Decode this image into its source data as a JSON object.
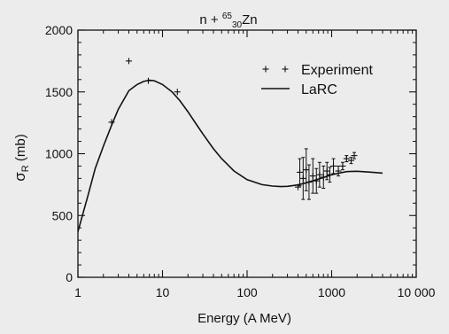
{
  "chart_data": {
    "type": "scatter",
    "title": {
      "prefix": "n + ",
      "mass_number": "65",
      "atomic_number": "30",
      "element": "Zn"
    },
    "xlabel": "Energy (A MeV)",
    "ylabel": {
      "symbol": "σ",
      "subscript": "R",
      "unit": " (mb)"
    },
    "x_scale": "log",
    "xlim": [
      1,
      10000
    ],
    "ylim": [
      0,
      2000
    ],
    "x_ticks": [
      {
        "value": 1,
        "label": "1"
      },
      {
        "value": 10,
        "label": "10"
      },
      {
        "value": 100,
        "label": "100"
      },
      {
        "value": 1000,
        "label": "1000"
      },
      {
        "value": 10000,
        "label": "10 000"
      }
    ],
    "y_ticks": [
      {
        "value": 0,
        "label": "0"
      },
      {
        "value": 500,
        "label": "500"
      },
      {
        "value": 1000,
        "label": "1000"
      },
      {
        "value": 1500,
        "label": "1500"
      },
      {
        "value": 2000,
        "label": "2000"
      }
    ],
    "legend_position": "top-right",
    "series": [
      {
        "name": "Experiment",
        "kind": "points",
        "marker": "plus",
        "points": [
          {
            "x": 2.5,
            "y": 1255
          },
          {
            "x": 4.0,
            "y": 1750
          },
          {
            "x": 6.8,
            "y": 1590
          },
          {
            "x": 15,
            "y": 1500
          },
          {
            "x": 400,
            "y": 730
          },
          {
            "x": 420,
            "y": 850,
            "yerr": 110
          },
          {
            "x": 460,
            "y": 800,
            "yerr": 170
          },
          {
            "x": 500,
            "y": 870,
            "yerr": 170
          },
          {
            "x": 540,
            "y": 770,
            "yerr": 140
          },
          {
            "x": 600,
            "y": 820,
            "yerr": 140
          },
          {
            "x": 660,
            "y": 780,
            "yerr": 100
          },
          {
            "x": 720,
            "y": 830,
            "yerr": 100
          },
          {
            "x": 800,
            "y": 810,
            "yerr": 90
          },
          {
            "x": 880,
            "y": 860,
            "yerr": 70
          },
          {
            "x": 950,
            "y": 830,
            "yerr": 60
          },
          {
            "x": 1050,
            "y": 900,
            "yerr": 60
          },
          {
            "x": 1200,
            "y": 860,
            "yerr": 40
          },
          {
            "x": 1350,
            "y": 900,
            "yerr": 30
          },
          {
            "x": 1500,
            "y": 960,
            "yerr": 25
          },
          {
            "x": 1700,
            "y": 945,
            "yerr": 25
          },
          {
            "x": 1850,
            "y": 985,
            "yerr": 25
          }
        ]
      },
      {
        "name": "LaRC",
        "kind": "line",
        "points": [
          {
            "x": 1.0,
            "y": 370
          },
          {
            "x": 1.3,
            "y": 650
          },
          {
            "x": 1.6,
            "y": 880
          },
          {
            "x": 2.0,
            "y": 1060
          },
          {
            "x": 2.5,
            "y": 1230
          },
          {
            "x": 3.0,
            "y": 1360
          },
          {
            "x": 4.0,
            "y": 1510
          },
          {
            "x": 5.0,
            "y": 1560
          },
          {
            "x": 6.0,
            "y": 1585
          },
          {
            "x": 7.0,
            "y": 1595
          },
          {
            "x": 8.0,
            "y": 1590
          },
          {
            "x": 10,
            "y": 1560
          },
          {
            "x": 13,
            "y": 1500
          },
          {
            "x": 16,
            "y": 1430
          },
          {
            "x": 20,
            "y": 1340
          },
          {
            "x": 25,
            "y": 1240
          },
          {
            "x": 30,
            "y": 1160
          },
          {
            "x": 40,
            "y": 1040
          },
          {
            "x": 50,
            "y": 960
          },
          {
            "x": 70,
            "y": 860
          },
          {
            "x": 100,
            "y": 790
          },
          {
            "x": 150,
            "y": 750
          },
          {
            "x": 200,
            "y": 738
          },
          {
            "x": 250,
            "y": 734
          },
          {
            "x": 300,
            "y": 736
          },
          {
            "x": 400,
            "y": 748
          },
          {
            "x": 500,
            "y": 765
          },
          {
            "x": 700,
            "y": 795
          },
          {
            "x": 1000,
            "y": 830
          },
          {
            "x": 1500,
            "y": 855
          },
          {
            "x": 2000,
            "y": 858
          },
          {
            "x": 3000,
            "y": 850
          },
          {
            "x": 4000,
            "y": 843
          }
        ]
      }
    ]
  }
}
